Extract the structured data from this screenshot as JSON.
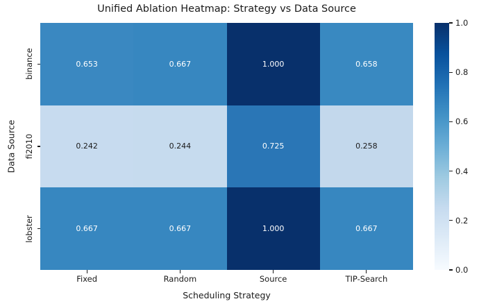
{
  "figure": {
    "background": "#ffffff",
    "text_color": "#1a1a1a"
  },
  "chart_data": {
    "type": "heatmap",
    "title": "Unified Ablation Heatmap: Strategy vs Data Source",
    "xlabel": "Scheduling Strategy",
    "ylabel": "Data Source",
    "x_categories": [
      "Fixed",
      "Random",
      "Source",
      "TIP-Search"
    ],
    "y_categories": [
      "binance",
      "fi2010",
      "lobster"
    ],
    "values": [
      [
        0.653,
        0.667,
        1.0,
        0.658
      ],
      [
        0.242,
        0.244,
        0.725,
        0.258
      ],
      [
        0.667,
        0.667,
        1.0,
        0.667
      ]
    ],
    "cell_labels": [
      [
        "0.653",
        "0.667",
        "1.000",
        "0.658"
      ],
      [
        "0.242",
        "0.244",
        "0.725",
        "0.258"
      ],
      [
        "0.667",
        "0.667",
        "1.000",
        "0.667"
      ]
    ],
    "cell_colors": [
      [
        "#3a88c1",
        "#3787c0",
        "#08306b",
        "#3989c1"
      ],
      [
        "#c7dbef",
        "#c6dbee",
        "#2a76b6",
        "#c3d8ec"
      ],
      [
        "#3787c0",
        "#3787c0",
        "#08306b",
        "#3787c0"
      ]
    ],
    "cell_text_colors": [
      [
        "#ffffff",
        "#ffffff",
        "#ffffff",
        "#ffffff"
      ],
      [
        "#1a1a1a",
        "#1a1a1a",
        "#ffffff",
        "#1a1a1a"
      ],
      [
        "#ffffff",
        "#ffffff",
        "#ffffff",
        "#ffffff"
      ]
    ],
    "colormap": "Blues",
    "grid": false,
    "legend_position": "right-colorbar",
    "colorbar": {
      "range": [
        0.0,
        1.0
      ],
      "ticks": [
        "1.0",
        "0.8",
        "0.6",
        "0.4",
        "0.2",
        "0.0"
      ],
      "gradient_stops": [
        "#f7fbff",
        "#deebf7",
        "#c6dbef",
        "#9ecae1",
        "#6baed6",
        "#4292c6",
        "#2171b5",
        "#08519c",
        "#08306b"
      ]
    }
  }
}
